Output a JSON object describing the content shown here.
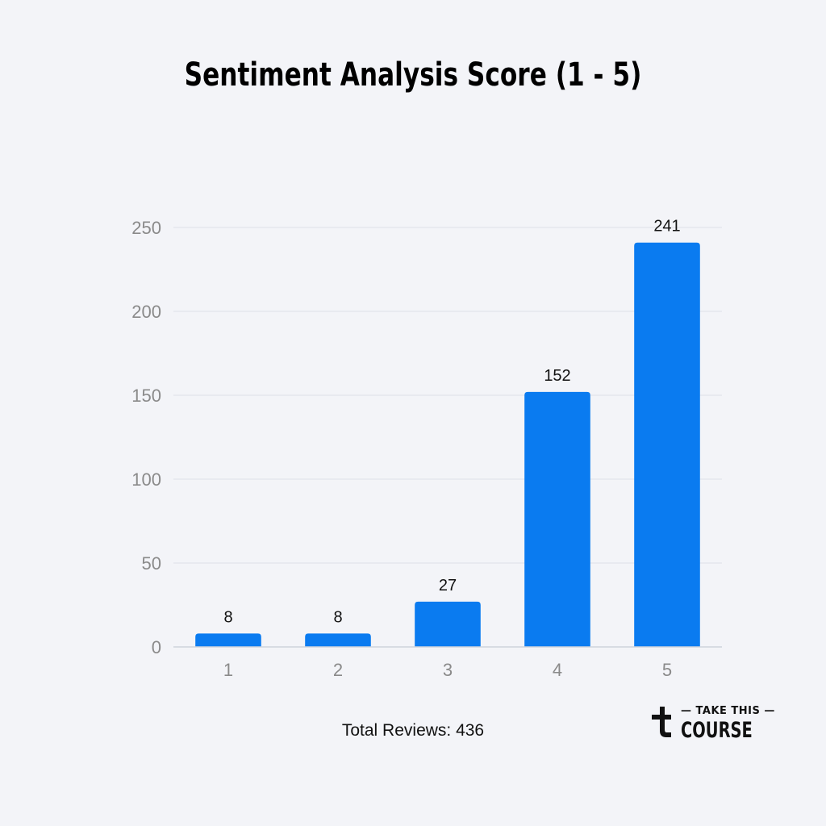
{
  "chart_data": {
    "type": "bar",
    "title": "Sentiment Analysis Score (1 - 5)",
    "categories": [
      "1",
      "2",
      "3",
      "4",
      "5"
    ],
    "values": [
      8,
      8,
      27,
      152,
      241
    ],
    "ylim": [
      0,
      250
    ],
    "yticks": [
      0,
      50,
      100,
      150,
      200,
      250
    ],
    "grid": true,
    "bar_color": "#0a7bf0",
    "data_labels": true
  },
  "footnote": "Total Reviews: 436",
  "logo": {
    "icon": "take-this-course-logo-icon",
    "line1": "TAKE THIS",
    "line2": "COURSE"
  }
}
